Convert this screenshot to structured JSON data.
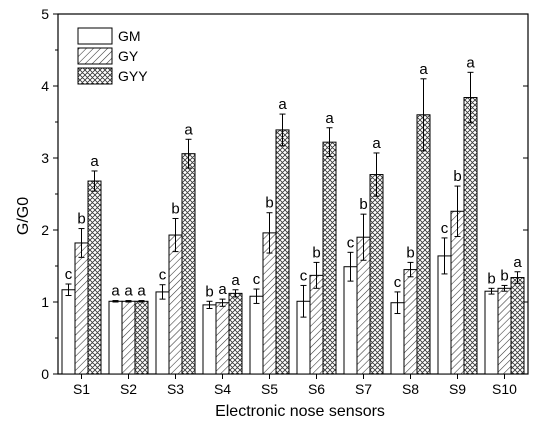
{
  "chart_data": {
    "type": "bar",
    "xlabel": "Electronic nose sensors",
    "ylabel": "G/G0",
    "ylim": [
      0,
      5
    ],
    "yticks": [
      0,
      1,
      2,
      3,
      4,
      5
    ],
    "grid": false,
    "legend_position": "top-left",
    "categories": [
      "S1",
      "S2",
      "S3",
      "S4",
      "S5",
      "S6",
      "S7",
      "S8",
      "S9",
      "S10"
    ],
    "series": [
      {
        "name": "GM",
        "pattern": "none",
        "values": [
          1.17,
          1.01,
          1.14,
          0.96,
          1.08,
          1.01,
          1.49,
          0.99,
          1.64,
          1.15
        ],
        "errors": [
          0.08,
          0.01,
          0.1,
          0.05,
          0.1,
          0.22,
          0.2,
          0.15,
          0.25,
          0.04
        ],
        "labels": [
          "c",
          "a",
          "c",
          "b",
          "c",
          "c",
          "c",
          "c",
          "c",
          "b"
        ]
      },
      {
        "name": "GY",
        "pattern": "diagonal-hatch",
        "values": [
          1.82,
          1.01,
          1.93,
          0.99,
          1.96,
          1.37,
          1.9,
          1.45,
          2.26,
          1.19
        ],
        "errors": [
          0.2,
          0.01,
          0.23,
          0.05,
          0.28,
          0.18,
          0.32,
          0.1,
          0.35,
          0.04
        ],
        "labels": [
          "b",
          "a",
          "b",
          "a",
          "b",
          "b",
          "b",
          "b",
          "b",
          "b"
        ]
      },
      {
        "name": "GYY",
        "pattern": "cross-hatch",
        "values": [
          2.68,
          1.01,
          3.06,
          1.12,
          3.39,
          3.22,
          2.77,
          3.6,
          3.84,
          1.34
        ],
        "errors": [
          0.14,
          0.01,
          0.2,
          0.05,
          0.22,
          0.2,
          0.3,
          0.5,
          0.35,
          0.08
        ],
        "labels": [
          "a",
          "a",
          "a",
          "a",
          "a",
          "a",
          "a",
          "a",
          "a",
          "a"
        ]
      }
    ]
  }
}
